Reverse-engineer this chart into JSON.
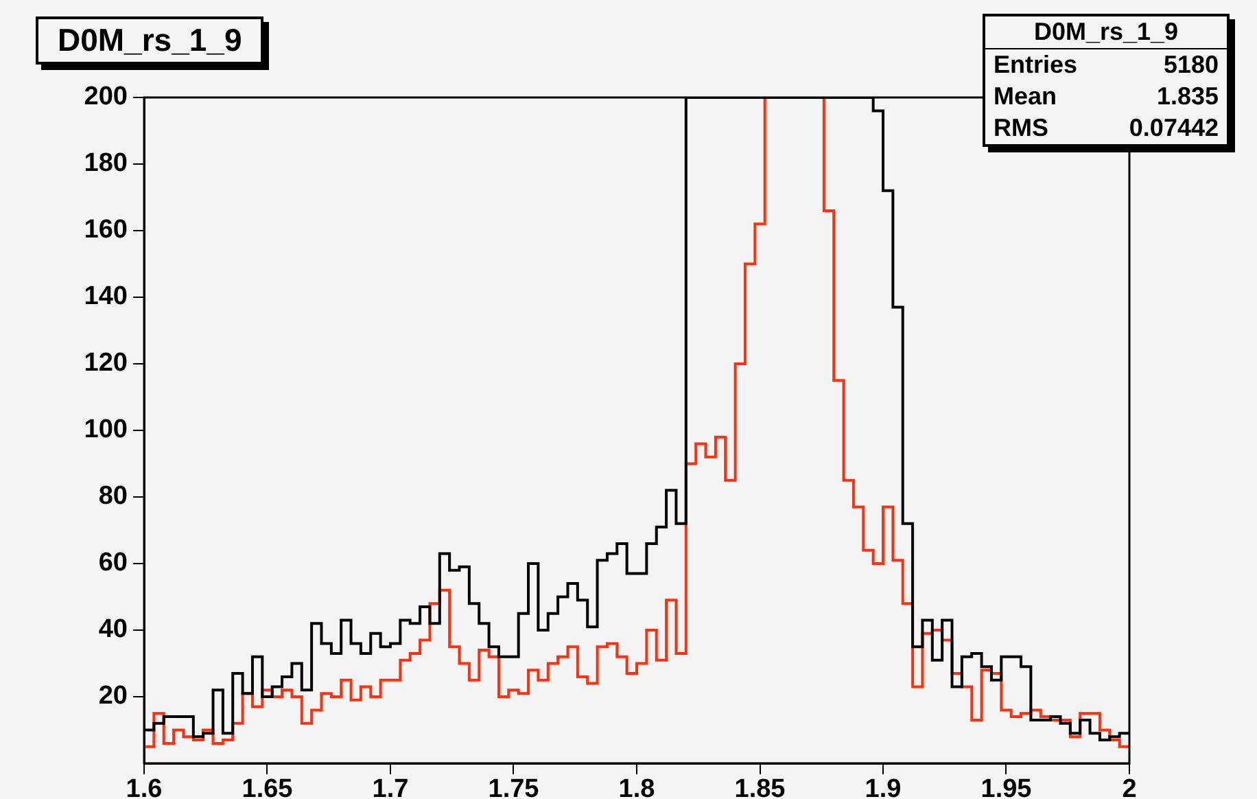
{
  "chart_data": {
    "type": "histogram",
    "title": "D0M_rs_1_9",
    "bins": [
      1.6,
      1.604,
      1.608,
      1.612,
      1.616,
      1.62,
      1.624,
      1.628,
      1.632,
      1.636,
      1.64,
      1.644,
      1.648,
      1.652,
      1.656,
      1.66,
      1.664,
      1.668,
      1.672,
      1.676,
      1.68,
      1.684,
      1.688,
      1.692,
      1.696,
      1.7,
      1.704,
      1.708,
      1.712,
      1.716,
      1.72,
      1.724,
      1.728,
      1.732,
      1.736,
      1.74,
      1.744,
      1.748,
      1.752,
      1.756,
      1.76,
      1.764,
      1.768,
      1.772,
      1.776,
      1.78,
      1.784,
      1.788,
      1.792,
      1.796,
      1.8,
      1.804,
      1.808,
      1.812,
      1.816,
      1.82,
      1.824,
      1.828,
      1.832,
      1.836,
      1.84,
      1.844,
      1.848,
      1.852,
      1.856,
      1.86,
      1.864,
      1.868,
      1.872,
      1.876,
      1.88,
      1.884,
      1.888,
      1.892,
      1.896,
      1.9,
      1.904,
      1.908,
      1.912,
      1.916,
      1.92,
      1.924,
      1.928,
      1.932,
      1.936,
      1.94,
      1.944,
      1.948,
      1.952,
      1.956,
      1.96,
      1.964,
      1.968,
      1.972,
      1.976,
      1.98,
      1.984,
      1.988,
      1.992,
      1.996,
      2
    ],
    "series": [
      {
        "color": "#000000",
        "values": [
          10,
          12,
          14,
          14,
          14,
          8,
          9,
          22,
          9,
          27,
          21,
          32,
          20,
          23,
          26,
          30,
          22,
          42,
          36,
          33,
          43,
          36,
          33,
          39,
          35,
          36,
          43,
          42,
          47,
          42,
          63,
          58,
          59,
          48,
          42,
          35,
          32,
          32,
          45,
          60,
          40,
          45,
          50,
          54,
          49,
          41,
          61,
          63,
          66,
          57,
          57,
          66,
          71,
          82,
          72,
          200,
          200,
          200,
          200,
          200,
          200,
          200,
          200,
          200,
          200,
          200,
          200,
          200,
          200,
          200,
          200,
          200,
          200,
          200,
          196,
          172,
          137,
          72,
          35,
          43,
          31,
          43,
          23,
          32,
          33,
          29,
          25,
          32,
          32,
          29,
          13,
          13,
          14,
          12,
          9,
          13,
          9,
          7,
          8,
          9
        ]
      },
      {
        "color": "#ff3010",
        "values": [
          5,
          15,
          6,
          10,
          8,
          7,
          10,
          6,
          7,
          12,
          21,
          17,
          22,
          20,
          22,
          20,
          12,
          16,
          21,
          20,
          25,
          19,
          23,
          20,
          25,
          25,
          31,
          33,
          37,
          48,
          52,
          35,
          30,
          25,
          34,
          32,
          20,
          22,
          21,
          28,
          25,
          30,
          32,
          35,
          26,
          24,
          35,
          36,
          32,
          27,
          30,
          40,
          31,
          49,
          33,
          90,
          96,
          92,
          98,
          85,
          120,
          150,
          162,
          200,
          200,
          200,
          200,
          200,
          200,
          166,
          115,
          85,
          77,
          64,
          60,
          77,
          61,
          48,
          23,
          39,
          40,
          37,
          27,
          23,
          13,
          28,
          27,
          16,
          14,
          15,
          16,
          14,
          13,
          13,
          8,
          15,
          15,
          10,
          7,
          5
        ]
      }
    ],
    "xlim": [
      1.6,
      2
    ],
    "xticks": [
      1.6,
      1.65,
      1.7,
      1.75,
      1.8,
      1.85,
      1.9,
      1.95,
      2
    ],
    "ylim": [
      0,
      200
    ],
    "yticks": [
      20,
      40,
      60,
      80,
      100,
      120,
      140,
      160,
      180,
      200
    ],
    "grid": false,
    "annotations": [
      "D0M_rs_1_9",
      "Entries",
      "5180",
      "Mean",
      "1.835",
      "RMS",
      "0.07442"
    ]
  }
}
